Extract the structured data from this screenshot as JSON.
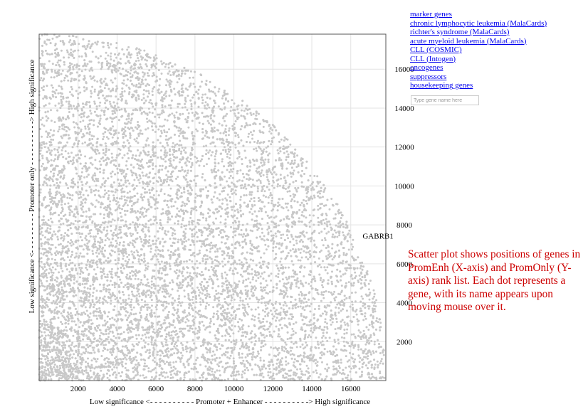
{
  "links": [
    {
      "label": "marker genes"
    },
    {
      "label": "chronic lymphocytic leukemia (MalaCards)"
    },
    {
      "label": "richter's syndrome (MalaCards)"
    },
    {
      "label": "acute myeloid leukemia (MalaCards)"
    },
    {
      "label": "CLL (COSMIC)"
    },
    {
      "label": "CLL (Intogen)"
    },
    {
      "label": "oncogenes"
    },
    {
      "label": "suppressors"
    },
    {
      "label": "housekeeping genes"
    }
  ],
  "search": {
    "placeholder": "Type gene name here",
    "value": ""
  },
  "description": "Scatter plot shows positions of genes in PromEnh (X-axis) and PromOnly (Y-axis) rank list. Each dot represents a gene, with its name appears upon moving mouse over it.",
  "chart_data": {
    "type": "scatter",
    "title": "",
    "xlabel": "Low significance <- - - - - - - - - - Promoter + Enhancer - - - - - - - - - -> High significance",
    "ylabel": "Low significance <- - - - - - - - - Promoter only - - - - - - - - - -> High significance",
    "xlim": [
      0,
      17800
    ],
    "ylim": [
      0,
      17800
    ],
    "x_ticks": [
      2000,
      4000,
      6000,
      8000,
      10000,
      12000,
      14000,
      16000
    ],
    "y_ticks": [
      2000,
      4000,
      6000,
      8000,
      10000,
      12000,
      14000,
      16000
    ],
    "grid": true,
    "point_color": "#c8c8c8",
    "point_count": 12000,
    "distribution": "genes fill the region inside a quarter circle of radius ~17800 centered at the origin (x^2 + y^2 <= 17800^2), denser near the origin",
    "hover_label": {
      "gene": "GABRB1",
      "x": 17400,
      "y": 7300
    }
  }
}
